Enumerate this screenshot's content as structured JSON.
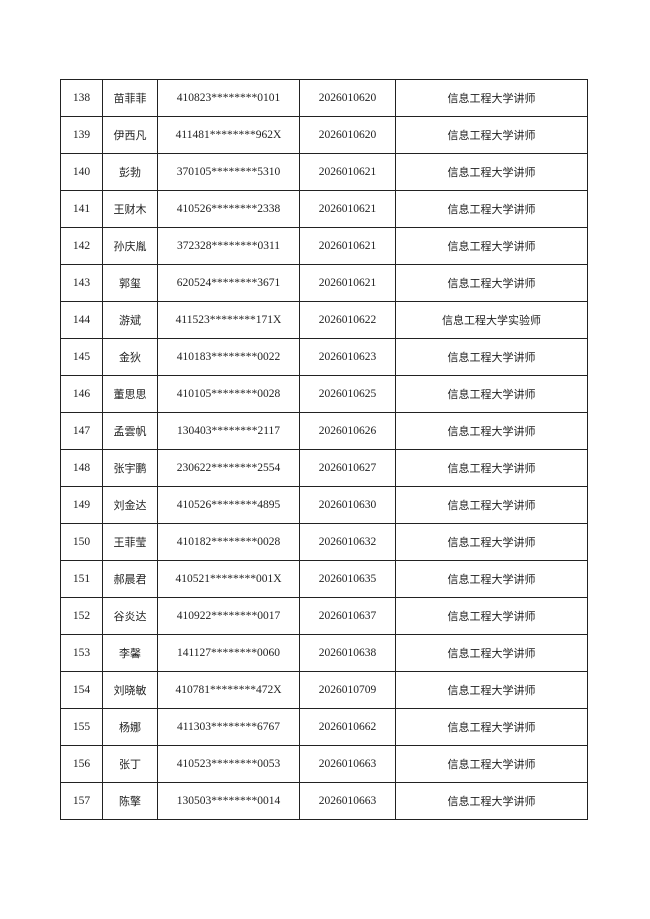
{
  "rows": [
    {
      "no": "138",
      "name": "苗菲菲",
      "id": "410823********0101",
      "exam": "2026010620",
      "position": "信息工程大学讲师"
    },
    {
      "no": "139",
      "name": "伊西凡",
      "id": "411481********962X",
      "exam": "2026010620",
      "position": "信息工程大学讲师"
    },
    {
      "no": "140",
      "name": "彭勃",
      "id": "370105********5310",
      "exam": "2026010621",
      "position": "信息工程大学讲师"
    },
    {
      "no": "141",
      "name": "王财木",
      "id": "410526********2338",
      "exam": "2026010621",
      "position": "信息工程大学讲师"
    },
    {
      "no": "142",
      "name": "孙庆胤",
      "id": "372328********0311",
      "exam": "2026010621",
      "position": "信息工程大学讲师"
    },
    {
      "no": "143",
      "name": "郭玺",
      "id": "620524********3671",
      "exam": "2026010621",
      "position": "信息工程大学讲师"
    },
    {
      "no": "144",
      "name": "游斌",
      "id": "411523********171X",
      "exam": "2026010622",
      "position": "信息工程大学实验师"
    },
    {
      "no": "145",
      "name": "金狄",
      "id": "410183********0022",
      "exam": "2026010623",
      "position": "信息工程大学讲师"
    },
    {
      "no": "146",
      "name": "董思思",
      "id": "410105********0028",
      "exam": "2026010625",
      "position": "信息工程大学讲师"
    },
    {
      "no": "147",
      "name": "孟雲帆",
      "id": "130403********2117",
      "exam": "2026010626",
      "position": "信息工程大学讲师"
    },
    {
      "no": "148",
      "name": "张宇鹏",
      "id": "230622********2554",
      "exam": "2026010627",
      "position": "信息工程大学讲师"
    },
    {
      "no": "149",
      "name": "刘金达",
      "id": "410526********4895",
      "exam": "2026010630",
      "position": "信息工程大学讲师"
    },
    {
      "no": "150",
      "name": "王菲莹",
      "id": "410182********0028",
      "exam": "2026010632",
      "position": "信息工程大学讲师"
    },
    {
      "no": "151",
      "name": "郝晨君",
      "id": "410521********001X",
      "exam": "2026010635",
      "position": "信息工程大学讲师"
    },
    {
      "no": "152",
      "name": "谷炎达",
      "id": "410922********0017",
      "exam": "2026010637",
      "position": "信息工程大学讲师"
    },
    {
      "no": "153",
      "name": "李馨",
      "id": "141127********0060",
      "exam": "2026010638",
      "position": "信息工程大学讲师"
    },
    {
      "no": "154",
      "name": "刘晓敏",
      "id": "410781********472X",
      "exam": "2026010709",
      "position": "信息工程大学讲师"
    },
    {
      "no": "155",
      "name": "杨娜",
      "id": "411303********6767",
      "exam": "2026010662",
      "position": "信息工程大学讲师"
    },
    {
      "no": "156",
      "name": "张丁",
      "id": "410523********0053",
      "exam": "2026010663",
      "position": "信息工程大学讲师"
    },
    {
      "no": "157",
      "name": "陈擎",
      "id": "130503********0014",
      "exam": "2026010663",
      "position": "信息工程大学讲师"
    }
  ]
}
